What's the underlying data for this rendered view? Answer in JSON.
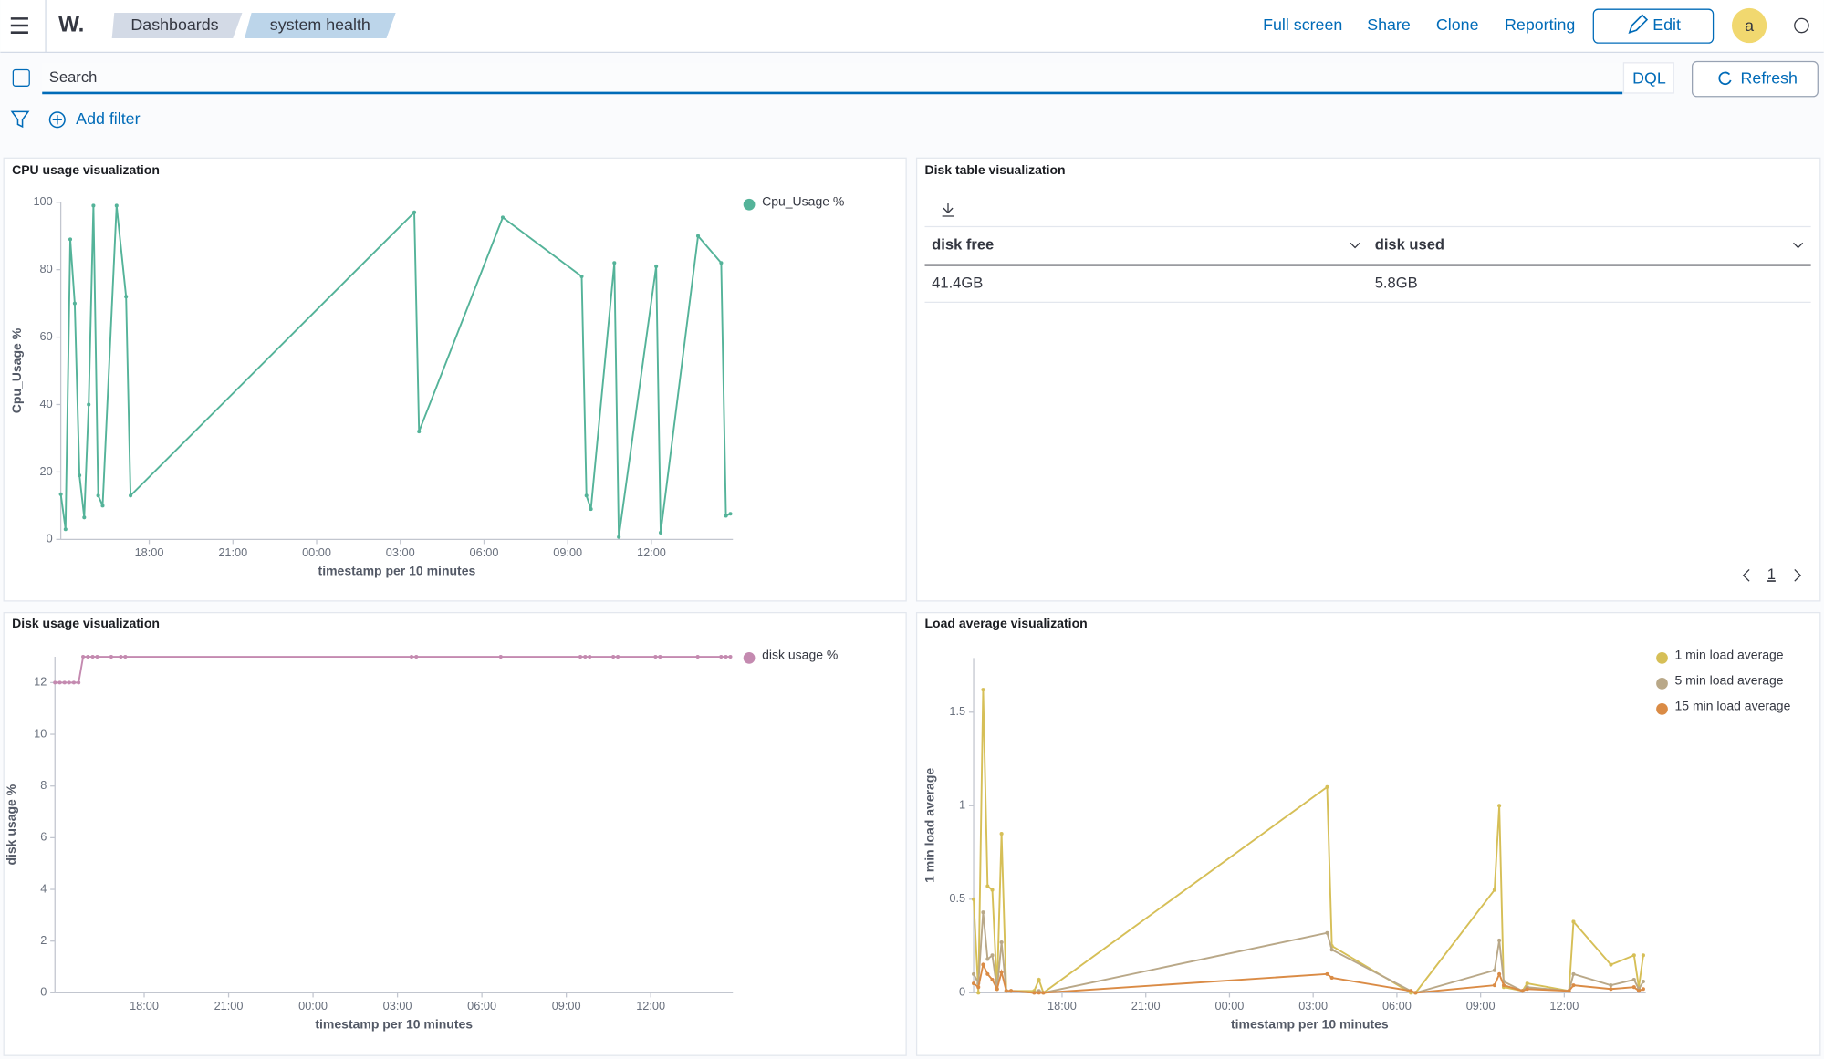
{
  "header": {
    "logo": "W.",
    "breadcrumbs": [
      "Dashboards",
      "system health"
    ],
    "actions": [
      "Full screen",
      "Share",
      "Clone",
      "Reporting"
    ],
    "edit": "Edit",
    "avatar": "a"
  },
  "query": {
    "placeholder": "Search",
    "language": "DQL",
    "refresh": "Refresh",
    "add_filter": "Add filter"
  },
  "panels": [
    {
      "type": "line",
      "title": "CPU usage visualization",
      "x_label": "timestamp per 10 minutes",
      "y_label": "Cpu_Usage %",
      "x": [
        14.83,
        15.0,
        15.17,
        15.33,
        15.5,
        15.67,
        15.83,
        16.0,
        16.17,
        16.33,
        16.83,
        17.17,
        17.33,
        27.5,
        27.67,
        30.67,
        33.5,
        33.67,
        33.83,
        34.67,
        34.83,
        36.17,
        36.33,
        37.67,
        38.5,
        38.67,
        38.83
      ],
      "series": [
        {
          "name": "Cpu_Usage %",
          "color": "#54b399",
          "values": [
            13.4,
            3,
            89,
            70,
            19,
            6.5,
            40,
            99,
            13,
            10,
            99,
            72,
            13,
            97,
            32,
            95.5,
            78,
            13,
            9,
            82,
            0.7,
            81,
            2,
            90,
            82,
            7,
            7.6
          ]
        }
      ],
      "xlim": [
        14.83,
        38.92
      ],
      "ylim": [
        0,
        100
      ],
      "xticks": [
        {
          "value": 18,
          "label": "18:00"
        },
        {
          "value": 21,
          "label": "21:00"
        },
        {
          "value": 24,
          "label": "00:00"
        },
        {
          "value": 27,
          "label": "03:00"
        },
        {
          "value": 30,
          "label": "06:00"
        },
        {
          "value": 33,
          "label": "09:00"
        },
        {
          "value": 36,
          "label": "12:00"
        }
      ],
      "yticks": [
        0,
        20,
        40,
        60,
        80,
        100
      ]
    },
    {
      "type": "table",
      "title": "Disk table visualization",
      "columns": [
        "disk free",
        "disk used"
      ],
      "rows": [
        [
          "41.4GB",
          "5.8GB"
        ]
      ],
      "page": "1"
    },
    {
      "type": "line",
      "title": "Disk usage visualization",
      "x_label": "timestamp per 10 minutes",
      "y_label": "disk usage %",
      "x": [
        14.83,
        15.0,
        15.17,
        15.33,
        15.5,
        15.67,
        15.83,
        16.0,
        16.17,
        16.33,
        16.83,
        17.17,
        17.33,
        27.5,
        27.67,
        30.67,
        33.5,
        33.67,
        33.83,
        34.67,
        34.83,
        36.17,
        36.33,
        37.67,
        38.5,
        38.67,
        38.83
      ],
      "series": [
        {
          "name": "disk usage %",
          "color": "#c48ab0",
          "values": [
            12,
            12,
            12,
            12,
            12,
            12,
            13,
            13,
            13,
            13,
            13,
            13,
            13,
            13,
            13,
            13,
            13,
            13,
            13,
            13,
            13,
            13,
            13,
            13,
            13,
            13,
            13
          ]
        }
      ],
      "xlim": [
        14.83,
        38.92
      ],
      "ylim": [
        0,
        13
      ],
      "xticks": [
        {
          "value": 18,
          "label": "18:00"
        },
        {
          "value": 21,
          "label": "21:00"
        },
        {
          "value": 24,
          "label": "00:00"
        },
        {
          "value": 27,
          "label": "03:00"
        },
        {
          "value": 30,
          "label": "06:00"
        },
        {
          "value": 33,
          "label": "09:00"
        },
        {
          "value": 36,
          "label": "12:00"
        }
      ],
      "yticks": [
        0,
        2,
        4,
        6,
        8,
        10,
        12
      ]
    },
    {
      "type": "line",
      "title": "Load average visualization",
      "x_label": "timestamp per 10 minutes",
      "y_label": "1 min load average",
      "x": [
        14.83,
        15.0,
        15.17,
        15.33,
        15.5,
        15.67,
        15.83,
        16.0,
        16.17,
        17.0,
        17.17,
        17.33,
        27.5,
        27.67,
        30.5,
        30.67,
        33.5,
        33.67,
        33.83,
        34.5,
        34.67,
        36.17,
        36.33,
        37.67,
        38.5,
        38.67,
        38.83
      ],
      "series": [
        {
          "name": "1 min load average",
          "color": "#d6bf57",
          "values": [
            0.5,
            0,
            1.62,
            0.57,
            0.55,
            0.02,
            0.85,
            0.01,
            0.01,
            0.01,
            0.07,
            0,
            1.1,
            0.25,
            0,
            0,
            0.55,
            1.0,
            0.03,
            0.01,
            0.05,
            0.01,
            0.38,
            0.15,
            0.2,
            0.03,
            0.2
          ]
        },
        {
          "name": "5 min load average",
          "color": "#b9a888",
          "values": [
            0.1,
            0.05,
            0.43,
            0.18,
            0.2,
            0.02,
            0.27,
            0.01,
            0.01,
            0,
            0.01,
            0,
            0.32,
            0.23,
            0.01,
            0,
            0.12,
            0.28,
            0.06,
            0.01,
            0.03,
            0.01,
            0.1,
            0.04,
            0.07,
            0.02,
            0.06
          ]
        },
        {
          "name": "15 min load average",
          "color": "#da8b45",
          "values": [
            0.05,
            0.03,
            0.15,
            0.1,
            0.07,
            0.02,
            0.11,
            0.01,
            0.01,
            0,
            0,
            0,
            0.1,
            0.08,
            0.01,
            0,
            0.04,
            0.1,
            0.04,
            0.01,
            0.02,
            0.01,
            0.04,
            0.02,
            0.03,
            0.01,
            0.02
          ]
        }
      ],
      "xlim": [
        14.83,
        38.92
      ],
      "ylim": [
        0,
        1.79
      ],
      "xticks": [
        {
          "value": 18,
          "label": "18:00"
        },
        {
          "value": 21,
          "label": "21:00"
        },
        {
          "value": 24,
          "label": "00:00"
        },
        {
          "value": 27,
          "label": "03:00"
        },
        {
          "value": 30,
          "label": "06:00"
        },
        {
          "value": 33,
          "label": "09:00"
        },
        {
          "value": 36,
          "label": "12:00"
        }
      ],
      "yticks": [
        0,
        0.5,
        1,
        1.5
      ]
    }
  ]
}
